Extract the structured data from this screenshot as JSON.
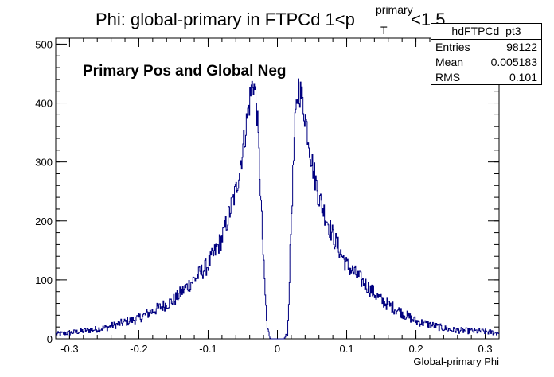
{
  "chart_data": {
    "type": "histogram",
    "title": {
      "main": "Phi: global-primary in FTPCd 1<p",
      "superscript": "primary",
      "subscript": "T",
      "tail": "<1.5"
    },
    "annotation": "Primary Pos and Global Neg",
    "xlabel": "Global-primary Phi",
    "ylabel": "",
    "xlim": [
      -0.32,
      0.32
    ],
    "ylim": [
      0,
      510
    ],
    "x_ticks": [
      {
        "value": -0.3,
        "label": "-0.3"
      },
      {
        "value": -0.2,
        "label": "-0.2"
      },
      {
        "value": -0.1,
        "label": "-0.1"
      },
      {
        "value": 0,
        "label": "0"
      },
      {
        "value": 0.1,
        "label": "0.1"
      },
      {
        "value": 0.2,
        "label": "0.2"
      },
      {
        "value": 0.3,
        "label": "0.3"
      }
    ],
    "y_ticks": [
      {
        "value": 0,
        "label": "0"
      },
      {
        "value": 100,
        "label": "100"
      },
      {
        "value": 200,
        "label": "200"
      },
      {
        "value": 300,
        "label": "300"
      },
      {
        "value": 400,
        "label": "400"
      },
      {
        "value": 500,
        "label": "500"
      }
    ],
    "grid": false,
    "line_color": "#000080",
    "stats_box": {
      "name": "hdFTPCd_pt3",
      "rows": [
        {
          "key": "Entries",
          "value": "98122"
        },
        {
          "key": "Mean",
          "value": "0.005183"
        },
        {
          "key": "RMS",
          "value": "0.101"
        }
      ]
    },
    "profile": {
      "x": [
        -0.32,
        -0.3,
        -0.25,
        -0.2,
        -0.15,
        -0.1,
        -0.08,
        -0.06,
        -0.05,
        -0.04,
        -0.035,
        -0.03,
        -0.025,
        -0.02,
        -0.015,
        -0.01,
        -0.005,
        0,
        0.005,
        0.01,
        0.015,
        0.02,
        0.025,
        0.03,
        0.035,
        0.04,
        0.05,
        0.06,
        0.08,
        0.1,
        0.15,
        0.2,
        0.25,
        0.3,
        0.32
      ],
      "y": [
        8,
        10,
        18,
        35,
        65,
        125,
        170,
        250,
        320,
        405,
        440,
        400,
        270,
        130,
        20,
        0,
        0,
        0,
        0,
        0,
        10,
        200,
        350,
        430,
        410,
        380,
        300,
        240,
        175,
        125,
        65,
        30,
        15,
        12,
        10
      ]
    }
  }
}
